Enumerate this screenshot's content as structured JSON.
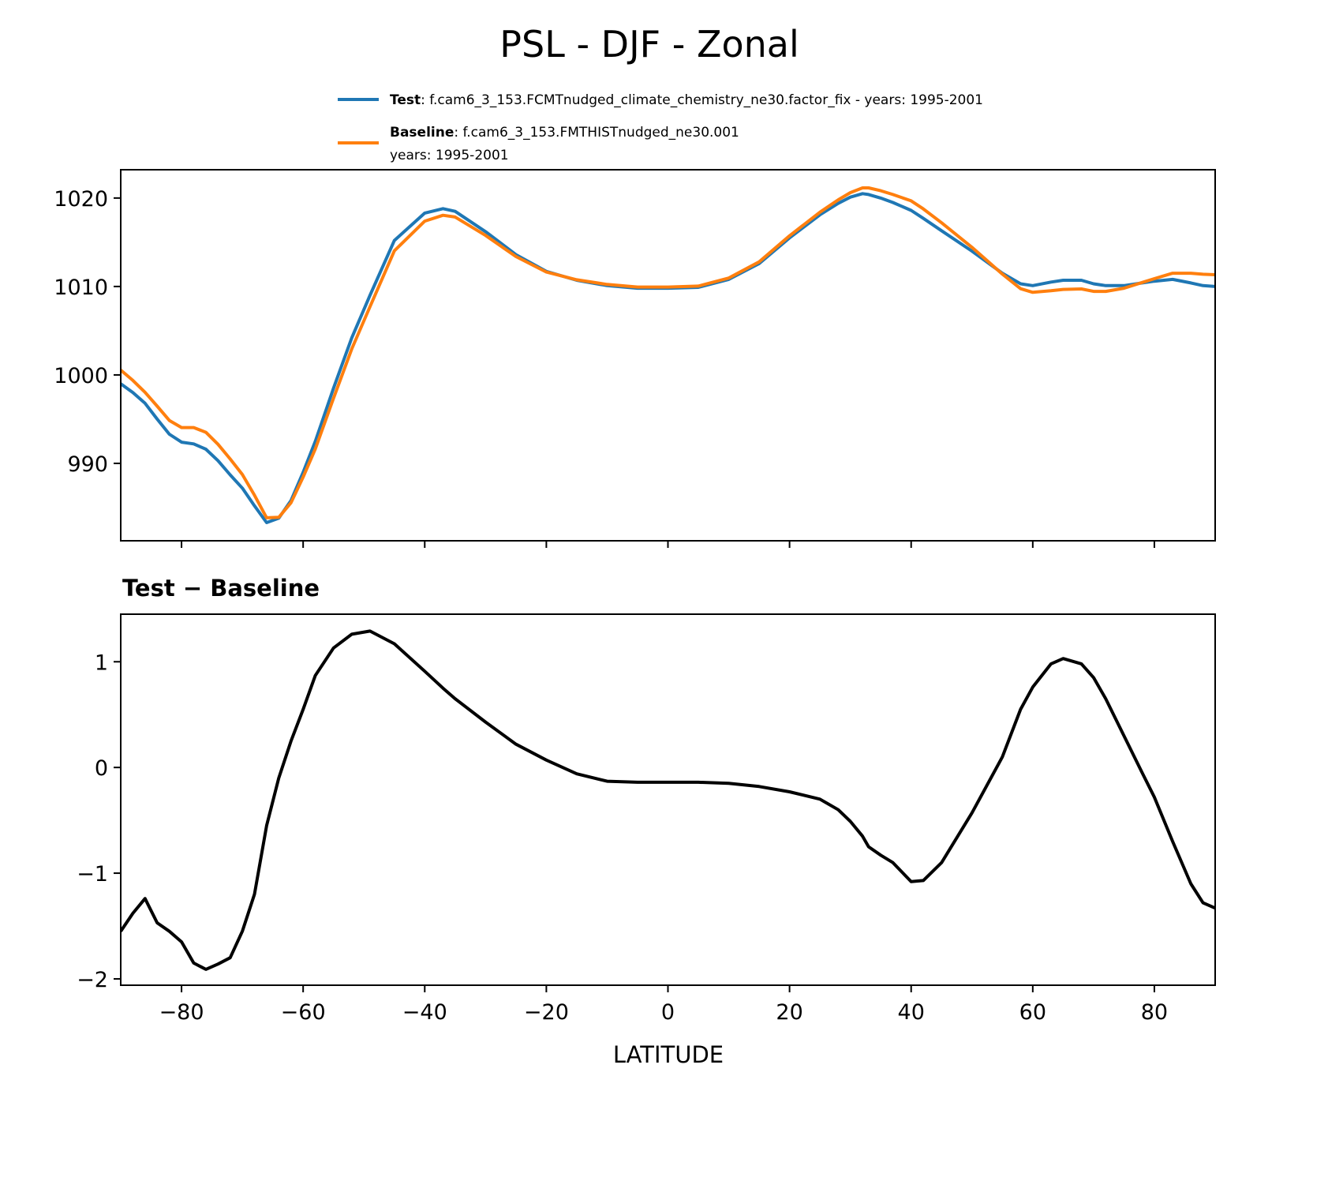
{
  "chart_data": [
    {
      "type": "line",
      "title": "PSL - DJF - Zonal",
      "xlabel": "",
      "ylabel": "",
      "xlim": [
        -90,
        90
      ],
      "ylim": [
        981.25,
        1023.2
      ],
      "xticks": [
        -80,
        -60,
        -40,
        -20,
        0,
        20,
        40,
        60,
        80
      ],
      "yticks": [
        990,
        1000,
        1010,
        1020
      ],
      "ytick_labels": [
        "990",
        "1000",
        "1010",
        "1020"
      ],
      "legend": {
        "placement": "top-right, above axes",
        "entries": [
          {
            "name": "Test",
            "text": ": f.cam6_3_153.FCMTnudged_climate_chemistry_ne30.factor_fix - years: 1995-2001",
            "color": "#1f77b4"
          },
          {
            "name": "Baseline",
            "text": ": f.cam6_3_153.FMTHISTnudged_ne30.001",
            "text2": "years: 1995-2001",
            "color": "#ff7f0e"
          }
        ]
      },
      "x": [
        -90,
        -88,
        -86,
        -84,
        -82,
        -80,
        -78,
        -76,
        -74,
        -72,
        -70,
        -68,
        -66,
        -64,
        -62,
        -60,
        -58,
        -55,
        -52,
        -49,
        -45,
        -40,
        -37,
        -35,
        -30,
        -25,
        -20,
        -15,
        -10,
        -5,
        0,
        5,
        10,
        15,
        20,
        25,
        28,
        30,
        32,
        33,
        35,
        37,
        40,
        42,
        45,
        50,
        55,
        58,
        60,
        63,
        65,
        68,
        70,
        72,
        75,
        78,
        80,
        83,
        86,
        88,
        90
      ],
      "series": [
        {
          "name": "Test",
          "color": "#1f77b4",
          "values": [
            999.0,
            998.0,
            996.8,
            995.0,
            993.3,
            992.4,
            992.2,
            991.6,
            990.3,
            988.7,
            987.2,
            985.2,
            983.3,
            983.8,
            985.8,
            989.0,
            992.5,
            998.5,
            1004.2,
            1009.0,
            1015.2,
            1018.3,
            1018.8,
            1018.5,
            1016.2,
            1013.6,
            1011.7,
            1010.7,
            1010.1,
            1009.8,
            1009.8,
            1009.9,
            1010.8,
            1012.6,
            1015.5,
            1018.1,
            1019.4,
            1020.1,
            1020.5,
            1020.4,
            1020.0,
            1019.5,
            1018.6,
            1017.7,
            1016.3,
            1014.0,
            1011.5,
            1010.3,
            1010.1,
            1010.5,
            1010.7,
            1010.7,
            1010.3,
            1010.1,
            1010.1,
            1010.4,
            1010.6,
            1010.8,
            1010.4,
            1010.1,
            1010.0
          ]
        },
        {
          "name": "Baseline",
          "color": "#ff7f0e",
          "values": [
            1000.55,
            999.38,
            998.04,
            996.47,
            994.85,
            994.05,
            994.05,
            993.51,
            992.16,
            990.5,
            988.75,
            986.4,
            983.85,
            983.9,
            985.55,
            988.45,
            991.63,
            997.37,
            1002.94,
            1007.71,
            1014.03,
            1017.39,
            1018.05,
            1017.85,
            1015.77,
            1013.38,
            1011.63,
            1010.76,
            1010.23,
            1009.94,
            1009.94,
            1010.04,
            1010.95,
            1012.78,
            1015.73,
            1018.4,
            1019.8,
            1020.61,
            1021.15,
            1021.15,
            1020.83,
            1020.4,
            1019.68,
            1018.77,
            1017.2,
            1014.43,
            1011.4,
            1009.75,
            1009.34,
            1009.52,
            1009.67,
            1009.72,
            1009.45,
            1009.45,
            1009.8,
            1010.45,
            1010.88,
            1011.5,
            1011.5,
            1011.38,
            1011.33
          ]
        }
      ]
    },
    {
      "type": "line",
      "title": "Test − Baseline",
      "xlabel": "LATITUDE",
      "ylabel": "",
      "xlim": [
        -90,
        90
      ],
      "ylim": [
        -2.06,
        1.45
      ],
      "xticks": [
        -80,
        -60,
        -40,
        -20,
        0,
        20,
        40,
        60,
        80
      ],
      "xtick_labels": [
        "−80",
        "−60",
        "−40",
        "−20",
        "0",
        "20",
        "40",
        "60",
        "80"
      ],
      "yticks": [
        -2,
        -1,
        0,
        1
      ],
      "ytick_labels": [
        "−2",
        "−1",
        "0",
        "1"
      ],
      "x": [
        -90,
        -88,
        -86,
        -84,
        -82,
        -80,
        -78,
        -76,
        -74,
        -72,
        -70,
        -68,
        -66,
        -64,
        -62,
        -60,
        -58,
        -55,
        -52,
        -49,
        -45,
        -40,
        -37,
        -35,
        -30,
        -25,
        -20,
        -15,
        -10,
        -5,
        0,
        5,
        10,
        15,
        20,
        25,
        28,
        30,
        32,
        33,
        35,
        37,
        40,
        42,
        45,
        50,
        55,
        58,
        60,
        63,
        65,
        68,
        70,
        72,
        75,
        78,
        80,
        83,
        86,
        88,
        90
      ],
      "series": [
        {
          "name": "Test - Baseline",
          "color": "#000000",
          "values": [
            -1.55,
            -1.38,
            -1.24,
            -1.47,
            -1.55,
            -1.65,
            -1.85,
            -1.91,
            -1.86,
            -1.8,
            -1.55,
            -1.2,
            -0.55,
            -0.1,
            0.25,
            0.55,
            0.87,
            1.13,
            1.26,
            1.29,
            1.17,
            0.91,
            0.75,
            0.65,
            0.43,
            0.22,
            0.07,
            -0.06,
            -0.13,
            -0.14,
            -0.14,
            -0.14,
            -0.15,
            -0.18,
            -0.23,
            -0.3,
            -0.4,
            -0.51,
            -0.65,
            -0.75,
            -0.83,
            -0.9,
            -1.08,
            -1.07,
            -0.9,
            -0.43,
            0.1,
            0.55,
            0.76,
            0.98,
            1.03,
            0.98,
            0.85,
            0.65,
            0.3,
            -0.05,
            -0.28,
            -0.7,
            -1.1,
            -1.28,
            -1.33
          ]
        }
      ]
    }
  ]
}
